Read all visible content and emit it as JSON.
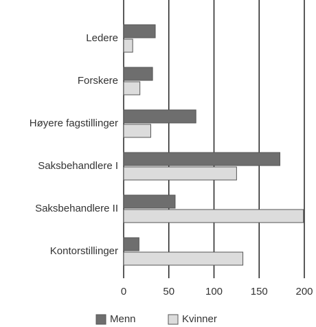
{
  "chart_data": {
    "type": "hbar",
    "categories": [
      "Ledere",
      "Forskere",
      "Høyere fagstillinger",
      "Saksbehandlere I",
      "Saksbehandlere II",
      "Kontorstillinger"
    ],
    "series": [
      {
        "name": "Menn",
        "color": "#6e6e6e",
        "values": [
          35,
          32,
          80,
          173,
          57,
          17
        ]
      },
      {
        "name": "Kvinner",
        "color": "#dcdcdc",
        "values": [
          10,
          18,
          30,
          125,
          199,
          132
        ]
      }
    ],
    "xlim": [
      0,
      200
    ],
    "xticks": [
      0,
      50,
      100,
      150,
      200
    ],
    "grid": true,
    "legend": "bottom"
  }
}
